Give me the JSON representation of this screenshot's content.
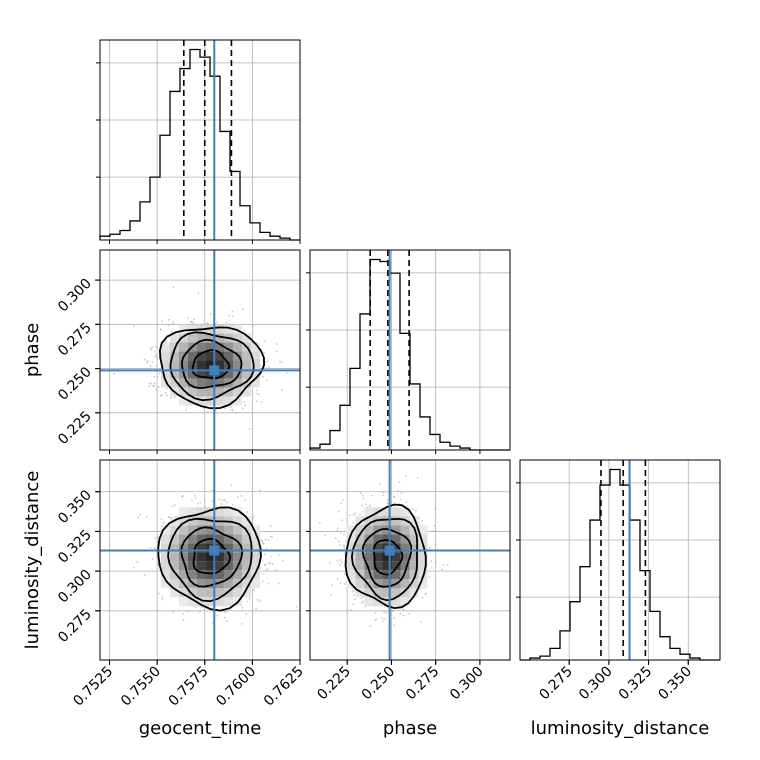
{
  "chart_data": {
    "type": "corner",
    "parameters": [
      "geocent_time",
      "phase",
      "luminosity_distance"
    ],
    "axis_labels": {
      "x": [
        "geocent_time",
        "phase",
        "luminosity_distance"
      ],
      "y": [
        "phase",
        "luminosity_distance"
      ]
    },
    "truth": {
      "geocent_time": 0.758,
      "phase": 0.249,
      "luminosity_distance": 0.313
    },
    "truth_color": "#3f7fbf",
    "hist_color": "#000000",
    "grid": true,
    "ranges": {
      "geocent_time": [
        0.752,
        0.7625
      ],
      "phase": [
        0.204,
        0.317
      ],
      "luminosity_distance": [
        0.244,
        0.37
      ]
    },
    "ticks": {
      "geocent_time": [
        0.7525,
        0.755,
        0.7575,
        0.76,
        0.7625
      ],
      "phase": [
        0.225,
        0.25,
        0.275,
        0.3
      ],
      "luminosity_distance": [
        0.275,
        0.3,
        0.325,
        0.35
      ]
    },
    "tick_labels": {
      "geocent_time": [
        "0.7525",
        "0.7550",
        "0.7575",
        "0.7600",
        "0.7625"
      ],
      "phase_x": [
        "0.225",
        "0.250",
        "0.275",
        "0.300"
      ],
      "phase_y": [
        "0.225",
        "0.250",
        "0.275",
        "0.300"
      ],
      "luminosity_distance_x": [
        "0.275",
        "0.300",
        "0.325",
        "0.350"
      ],
      "luminosity_distance_y": [
        "0.275",
        "0.300",
        "0.325",
        "0.350"
      ]
    },
    "quantiles": {
      "geocent_time": [
        0.7564,
        0.7575,
        0.7589
      ],
      "phase": [
        0.238,
        0.248,
        0.26
      ],
      "luminosity_distance": [
        0.295,
        0.309,
        0.323
      ]
    },
    "histograms": {
      "geocent_time": {
        "edges_range": [
          0.752,
          0.7625
        ],
        "counts": [
          2,
          3,
          5,
          10,
          20,
          33,
          55,
          78,
          90,
          100,
          96,
          86,
          57,
          36,
          18,
          9,
          4,
          2,
          1,
          0
        ]
      },
      "phase": {
        "edges_range": [
          0.204,
          0.317
        ],
        "counts": [
          1,
          3,
          10,
          23,
          42,
          70,
          98,
          97,
          91,
          60,
          34,
          17,
          8,
          4,
          2,
          1,
          0,
          0,
          0,
          0
        ]
      },
      "luminosity_distance": {
        "edges_range": [
          0.244,
          0.37
        ],
        "counts": [
          0,
          1,
          2,
          6,
          15,
          30,
          48,
          72,
          90,
          98,
          90,
          72,
          46,
          25,
          12,
          6,
          3,
          1,
          0,
          0
        ]
      }
    },
    "panels_2d": [
      {
        "x": "geocent_time",
        "y": "phase"
      },
      {
        "x": "geocent_time",
        "y": "luminosity_distance"
      },
      {
        "x": "phase",
        "y": "luminosity_distance"
      }
    ],
    "posterior_sigma": {
      "geocent_time": 0.00125,
      "phase": 0.0105,
      "luminosity_distance": 0.0145
    }
  }
}
